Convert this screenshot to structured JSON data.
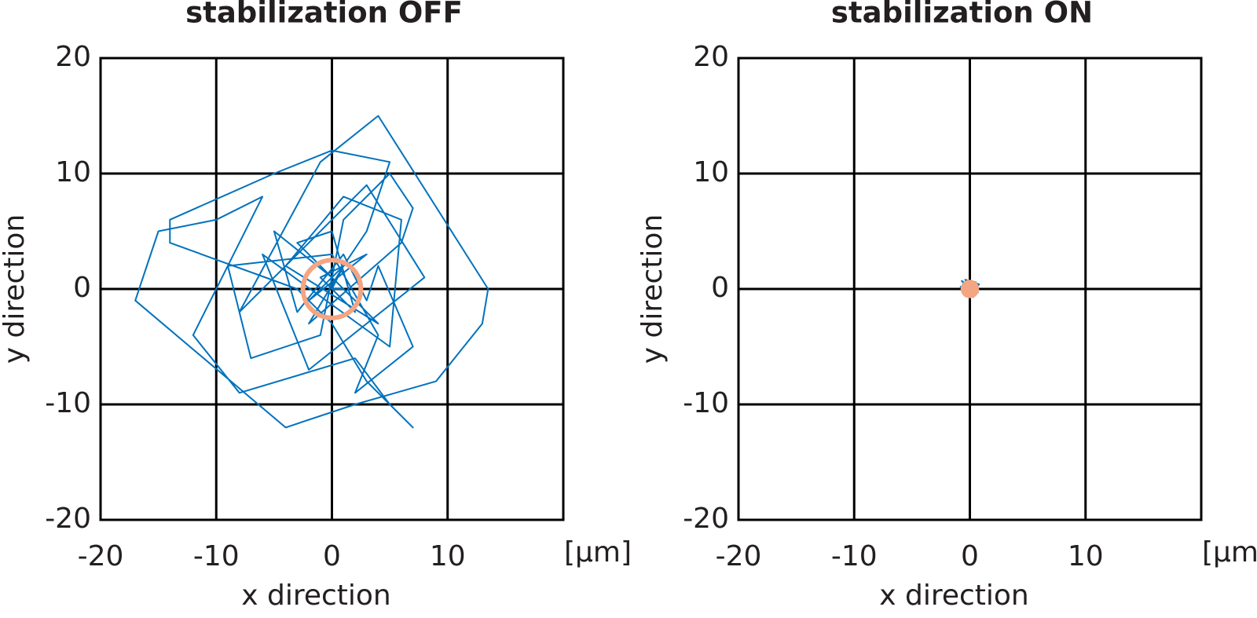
{
  "chart_data": [
    {
      "type": "line",
      "title": "stabilization OFF",
      "x_label": "x direction",
      "y_label": "y direction",
      "unit_label": "[μm]",
      "xlim": [
        -20,
        20
      ],
      "xticks": [
        -20,
        -10,
        0,
        10
      ],
      "ylim": [
        -20,
        20
      ],
      "yticks": [
        -20,
        -10,
        0,
        10,
        20
      ],
      "grid": true,
      "series": [
        {
          "type": "line",
          "color": "#0072bd",
          "x": [
            0,
            1,
            -2,
            3,
            -1,
            2,
            0,
            -3,
            4,
            -4,
            1,
            6,
            5,
            -6,
            -2,
            8,
            3,
            -8,
            -1,
            4,
            13.5,
            13,
            9,
            2,
            -4,
            -17,
            -15,
            -10,
            -6,
            -12,
            -8,
            2,
            5,
            7,
            3,
            0,
            -3,
            -14,
            -14,
            -5,
            0,
            5,
            3,
            1,
            -2,
            6,
            7,
            5,
            1,
            -1,
            -7,
            -9,
            0,
            4,
            2,
            7,
            4,
            3,
            1,
            -3,
            -5,
            0,
            2,
            1,
            0
          ],
          "values": [
            0,
            2,
            -1,
            3,
            1,
            -2,
            5,
            4,
            -3,
            2,
            8,
            6,
            -5,
            3,
            -7,
            1,
            9,
            -2,
            11,
            15,
            0,
            -3,
            -8,
            -10,
            -12,
            -1,
            5,
            6,
            8,
            -4,
            -9,
            -6,
            -10,
            -12,
            -8,
            -3,
            0,
            4,
            6,
            10,
            12,
            11,
            5,
            2,
            -3,
            4,
            7,
            10,
            6,
            -4,
            -6,
            2,
            3,
            -4,
            -9,
            -5,
            2,
            -1,
            3,
            -2,
            5,
            1,
            -1,
            0,
            0
          ]
        },
        {
          "type": "circle",
          "color": "#f4a582",
          "filled": false,
          "x": [
            0
          ],
          "values": [
            0
          ],
          "radius": [
            2.5
          ]
        }
      ]
    },
    {
      "type": "line",
      "title": "stabilization ON",
      "x_label": "x direction",
      "y_label": "y direction",
      "unit_label": "[μm]",
      "xlim": [
        -20,
        20
      ],
      "xticks": [
        -20,
        -10,
        0,
        10
      ],
      "ylim": [
        -20,
        20
      ],
      "yticks": [
        -20,
        -10,
        0,
        10,
        20
      ],
      "grid": true,
      "series": [
        {
          "type": "line",
          "color": "#0072bd",
          "x": [
            0,
            0.5,
            -0.6,
            0.7,
            -0.8,
            0.3,
            -0.4,
            0.8,
            -0.2,
            0.6,
            -0.7,
            0
          ],
          "values": [
            0,
            0.6,
            0.5,
            -0.3,
            0.2,
            -0.7,
            0.8,
            0.4,
            -0.6,
            -0.2,
            0.7,
            0
          ]
        },
        {
          "type": "circle",
          "color": "#f4a582",
          "filled": true,
          "x": [
            0
          ],
          "values": [
            0
          ],
          "radius": [
            0.8
          ]
        }
      ]
    }
  ]
}
